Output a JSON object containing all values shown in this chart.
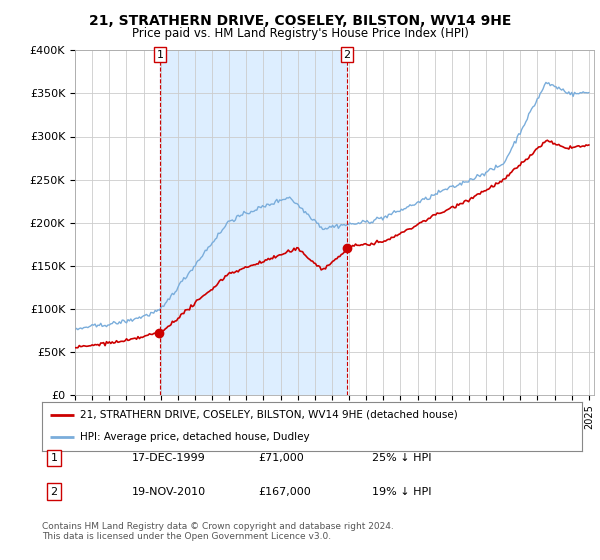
{
  "title": "21, STRATHERN DRIVE, COSELEY, BILSTON, WV14 9HE",
  "subtitle": "Price paid vs. HM Land Registry's House Price Index (HPI)",
  "legend_line1": "21, STRATHERN DRIVE, COSELEY, BILSTON, WV14 9HE (detached house)",
  "legend_line2": "HPI: Average price, detached house, Dudley",
  "footnote": "Contains HM Land Registry data © Crown copyright and database right 2024.\nThis data is licensed under the Open Government Licence v3.0.",
  "hpi_color": "#7aaddb",
  "price_color": "#cc0000",
  "marker1_date": "17-DEC-1999",
  "marker1_price": 71000,
  "marker1_label": "25% ↓ HPI",
  "marker2_date": "19-NOV-2010",
  "marker2_price": 167000,
  "marker2_label": "19% ↓ HPI",
  "ylim": [
    0,
    400000
  ],
  "yticks": [
    0,
    50000,
    100000,
    150000,
    200000,
    250000,
    300000,
    350000,
    400000
  ],
  "ytick_labels": [
    "£0",
    "£50K",
    "£100K",
    "£150K",
    "£200K",
    "£250K",
    "£300K",
    "£350K",
    "£400K"
  ],
  "background_color": "#ffffff",
  "plot_bg_color": "#ffffff",
  "shade_color": "#ddeeff",
  "grid_color": "#cccccc",
  "sale1_x": 1999.96,
  "sale2_x": 2010.88
}
